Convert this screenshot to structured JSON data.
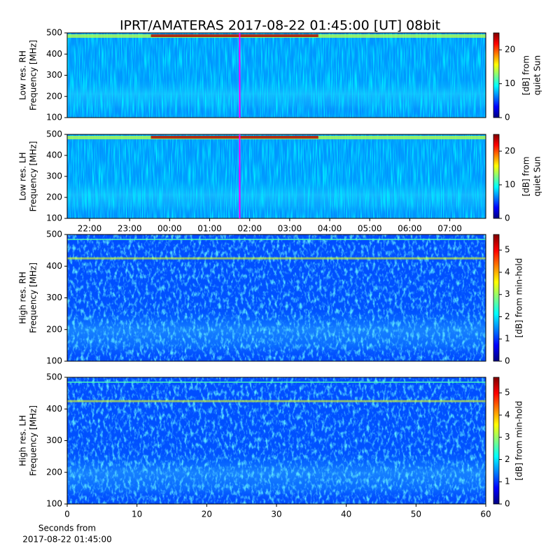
{
  "chart_data": [
    {
      "type": "spectrogram",
      "title": "IPRT/AMATERAS 2017-08-22 01:45:00 [UT]   08bit",
      "ylabel": [
        "Low res. RH",
        "Frequency [MHz]"
      ],
      "ylim": [
        100,
        500
      ],
      "yticks": [
        100,
        200,
        300,
        400,
        500
      ],
      "xlim": [
        21.44,
        31.9
      ],
      "marker_line": {
        "x": 25.75,
        "color": "#ff00ff"
      },
      "colormap": "jet",
      "clim": [
        0,
        25
      ],
      "cticks": [
        0,
        10,
        20
      ],
      "clabel": [
        "[dB] from",
        "quiet Sun"
      ]
    },
    {
      "type": "spectrogram",
      "ylabel": [
        "Low res. LH",
        "Frequency [MHz]"
      ],
      "ylim": [
        100,
        500
      ],
      "yticks": [
        100,
        200,
        300,
        400,
        500
      ],
      "xlim": [
        21.44,
        31.9
      ],
      "xticks": [
        {
          "value": 22,
          "label": "22:00"
        },
        {
          "value": 23,
          "label": "23:00"
        },
        {
          "value": 24,
          "label": "00:00"
        },
        {
          "value": 25,
          "label": "01:00"
        },
        {
          "value": 26,
          "label": "02:00"
        },
        {
          "value": 27,
          "label": "03:00"
        },
        {
          "value": 28,
          "label": "04:00"
        },
        {
          "value": 29,
          "label": "05:00"
        },
        {
          "value": 30,
          "label": "06:00"
        },
        {
          "value": 31,
          "label": "07:00"
        }
      ],
      "marker_line": {
        "x": 25.75,
        "color": "#ff00ff"
      },
      "colormap": "jet",
      "clim": [
        0,
        25
      ],
      "cticks": [
        0,
        10,
        20
      ],
      "clabel": [
        "[dB] from",
        "quiet Sun"
      ]
    },
    {
      "type": "spectrogram",
      "ylabel": [
        "High res. RH",
        "Frequency [MHz]"
      ],
      "ylim": [
        100,
        500
      ],
      "yticks": [
        100,
        200,
        300,
        400,
        500
      ],
      "xlim": [
        0,
        60
      ],
      "colormap": "jet",
      "clim": [
        0,
        5.7
      ],
      "cticks": [
        0,
        1,
        2,
        3,
        4,
        5
      ],
      "clabel": [
        "[dB] from min-hold"
      ]
    },
    {
      "type": "spectrogram",
      "ylabel": [
        "High res. LH",
        "Frequency [MHz]"
      ],
      "ylim": [
        100,
        500
      ],
      "yticks": [
        100,
        200,
        300,
        400,
        500
      ],
      "xlim": [
        0,
        60
      ],
      "xticks": [
        0,
        10,
        20,
        30,
        40,
        50,
        60
      ],
      "xlabel": [
        "Seconds from",
        "2017-08-22 01:45:00"
      ],
      "colormap": "jet",
      "clim": [
        0,
        5.7
      ],
      "cticks": [
        0,
        1,
        2,
        3,
        4,
        5
      ],
      "clabel": [
        "[dB] from min-hold"
      ]
    }
  ]
}
